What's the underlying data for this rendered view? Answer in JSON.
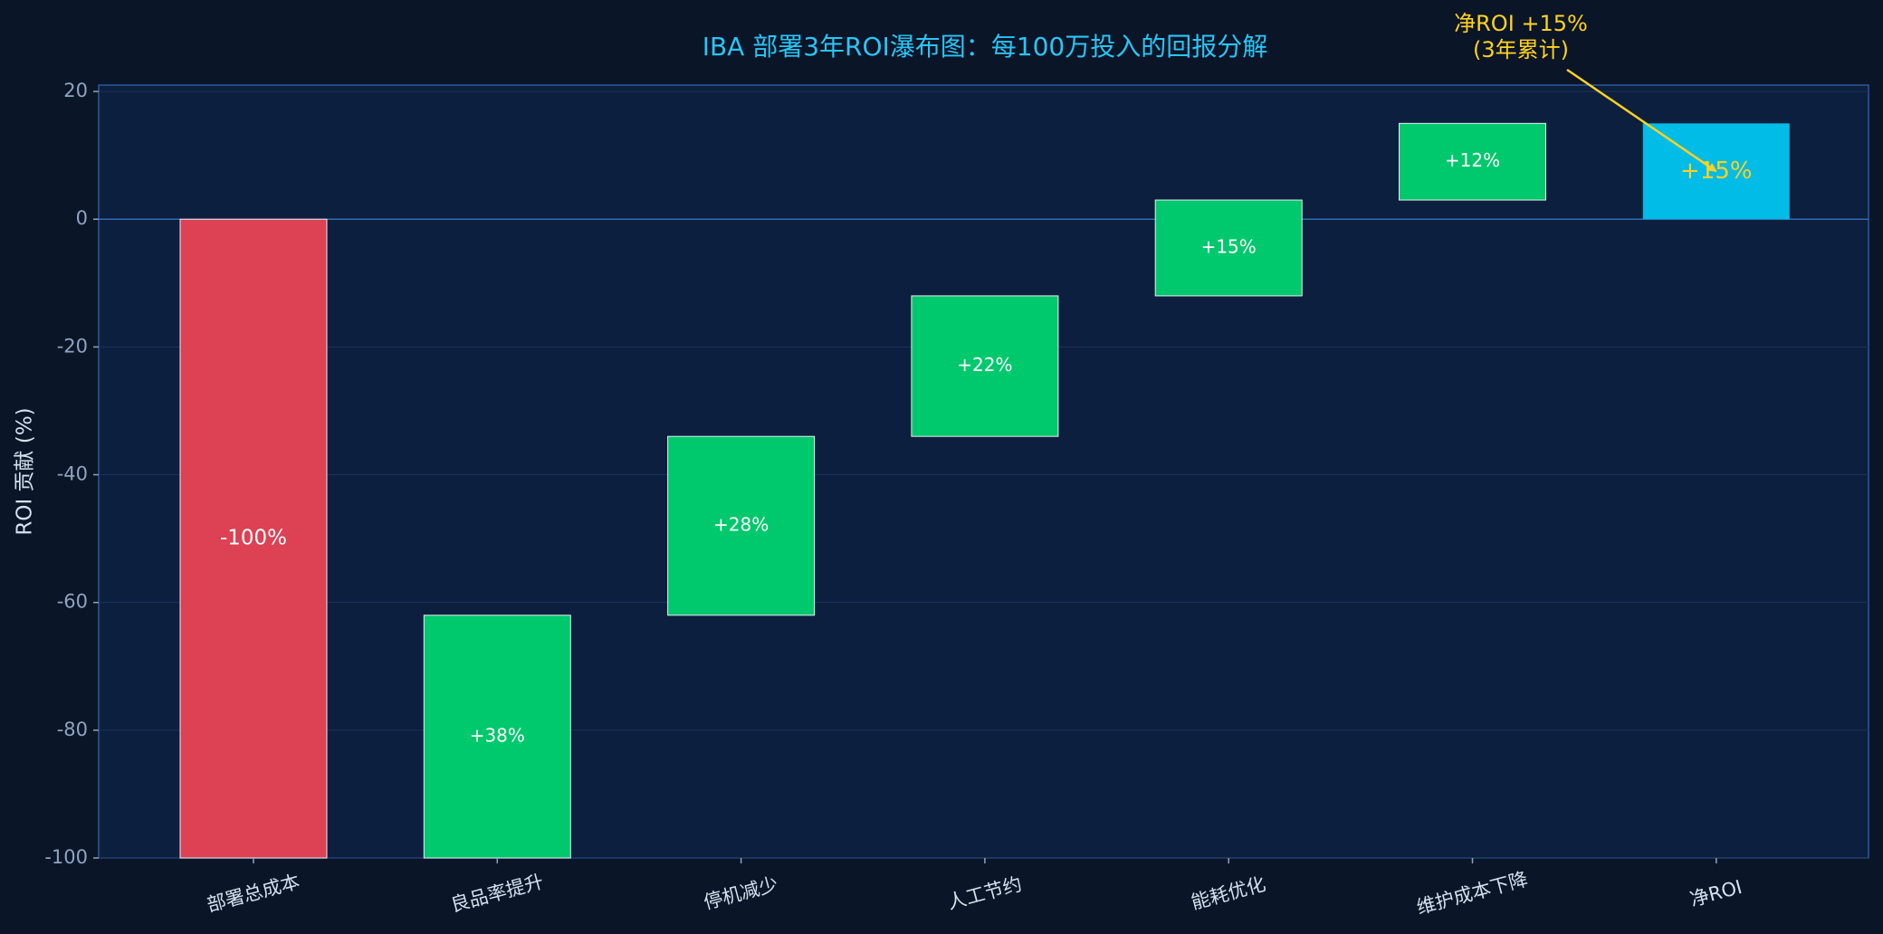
{
  "chart_data": {
    "type": "waterfall",
    "title": "IBA 部署3年ROI瀑布图：每100万投入的回报分解",
    "y_label": "ROI 贡献 (%)",
    "categories": [
      "部署总成本",
      "良品率提升",
      "停机减少",
      "人工节约",
      "能耗优化",
      "维护成本下降",
      "净ROI"
    ],
    "values": [
      -100,
      38,
      28,
      22,
      15,
      12,
      15
    ],
    "value_labels": [
      "-100%",
      "+38%",
      "+28%",
      "+22%",
      "+15%",
      "+12%",
      "+15%"
    ],
    "measures": [
      "relative",
      "relative",
      "relative",
      "relative",
      "relative",
      "relative",
      "total"
    ],
    "negative_color": "#dc4154",
    "positive_color": "#00c86c",
    "total_color": "#00bce6",
    "ylim": [
      -100,
      21
    ],
    "yticks": [
      -100,
      -80,
      -60,
      -40,
      -20,
      0,
      20
    ],
    "grid": true,
    "annotation": {
      "lines": [
        "净ROI +15%",
        "(3年累计)"
      ],
      "color": "#ffd21f"
    }
  }
}
